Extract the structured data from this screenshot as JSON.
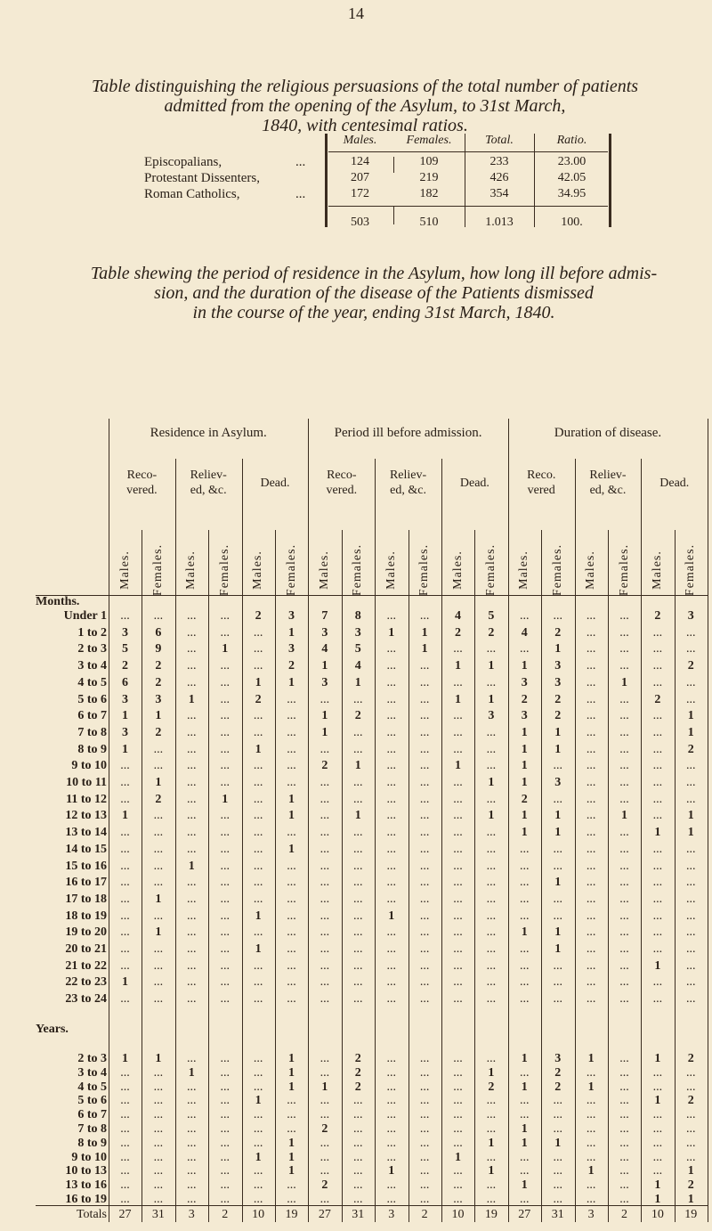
{
  "page_number": "14",
  "religion_table": {
    "title": [
      "Table distinguishing the religious persuasions of the total number of patients",
      "admitted from the opening of the Asylum, to 31st March,",
      "1840, with centesimal ratios."
    ],
    "headers": [
      "Males.",
      "Females.",
      "Total.",
      "Ratio."
    ],
    "rows": [
      {
        "label": "Episcopalians,",
        "dots": "...",
        "values": [
          "124",
          "109",
          "233",
          "23.00"
        ]
      },
      {
        "label": "Protestant Dissenters,",
        "dots": "",
        "values": [
          "207",
          "219",
          "426",
          "42.05"
        ]
      },
      {
        "label": "Roman Catholics,",
        "dots": "...",
        "values": [
          "172",
          "182",
          "354",
          "34.95"
        ]
      }
    ],
    "totals": [
      "503",
      "510",
      "1.013",
      "100."
    ]
  },
  "residence_table": {
    "title": [
      "Table shewing the period of residence in the Asylum, how long ill before admis-",
      "sion, and the duration of the disease of the Patients dismissed",
      "in the course of the year, ending 31st March, 1840."
    ],
    "groups": [
      "Residence in Asylum.",
      "Period ill before admission.",
      "Duration of disease."
    ],
    "subgroups": [
      [
        "Reco-",
        "vered."
      ],
      [
        "Reliev-",
        "ed, &c."
      ],
      [
        "Dead."
      ],
      [
        "Reco-",
        "vered."
      ],
      [
        "Reliev-",
        "ed, &c."
      ],
      [
        "Dead."
      ],
      [
        "Reco.",
        "vered"
      ],
      [
        "Reliev-",
        "ed, &c."
      ],
      [
        "Dead."
      ]
    ],
    "sex_labels": [
      "Males.",
      "Females."
    ],
    "months_label": "Months.",
    "years_label": "Years.",
    "month_rows": [
      {
        "label": "Under 1",
        "v": [
          "...",
          "...",
          "...",
          "...",
          "2",
          "3",
          "7",
          "8",
          "...",
          "...",
          "4",
          "5",
          "...",
          "...",
          "...",
          "...",
          "2",
          "3"
        ]
      },
      {
        "label": "1 to 2",
        "v": [
          "3",
          "6",
          "...",
          "...",
          "...",
          "1",
          "3",
          "3",
          "1",
          "1",
          "2",
          "2",
          "4",
          "2",
          "...",
          "...",
          "...",
          "..."
        ]
      },
      {
        "label": "2 to 3",
        "v": [
          "5",
          "9",
          "...",
          "1",
          "...",
          "3",
          "4",
          "5",
          "...",
          "1",
          "...",
          "...",
          "...",
          "1",
          "...",
          "...",
          "...",
          "..."
        ]
      },
      {
        "label": "3 to 4",
        "v": [
          "2",
          "2",
          "...",
          "...",
          "...",
          "2",
          "1",
          "4",
          "...",
          "...",
          "1",
          "1",
          "1",
          "3",
          "...",
          "...",
          "...",
          "2"
        ]
      },
      {
        "label": "4 to 5",
        "v": [
          "6",
          "2",
          "...",
          "...",
          "1",
          "1",
          "3",
          "1",
          "...",
          "...",
          "...",
          "...",
          "3",
          "3",
          "...",
          "1",
          "...",
          "..."
        ]
      },
      {
        "label": "5 to 6",
        "v": [
          "3",
          "3",
          "1",
          "...",
          "2",
          "...",
          "...",
          "...",
          "...",
          "...",
          "1",
          "1",
          "2",
          "2",
          "...",
          "...",
          "2",
          "..."
        ]
      },
      {
        "label": "6 to 7",
        "v": [
          "1",
          "1",
          "...",
          "...",
          "...",
          "...",
          "1",
          "2",
          "...",
          "...",
          "...",
          "3",
          "3",
          "2",
          "...",
          "...",
          "...",
          "1"
        ]
      },
      {
        "label": "7 to 8",
        "v": [
          "3",
          "2",
          "...",
          "...",
          "...",
          "...",
          "1",
          "...",
          "...",
          "...",
          "...",
          "...",
          "1",
          "1",
          "...",
          "...",
          "...",
          "1"
        ]
      },
      {
        "label": "8 to 9",
        "v": [
          "1",
          "...",
          "...",
          "...",
          "1",
          "...",
          "...",
          "...",
          "...",
          "...",
          "...",
          "...",
          "1",
          "1",
          "...",
          "...",
          "...",
          "2"
        ]
      },
      {
        "label": "9 to 10",
        "v": [
          "...",
          "...",
          "...",
          "...",
          "...",
          "...",
          "2",
          "1",
          "...",
          "...",
          "1",
          "...",
          "1",
          "...",
          "...",
          "...",
          "...",
          "..."
        ]
      },
      {
        "label": "10 to 11",
        "v": [
          "...",
          "1",
          "...",
          "...",
          "...",
          "...",
          "...",
          "...",
          "...",
          "...",
          "...",
          "1",
          "1",
          "3",
          "...",
          "...",
          "...",
          "..."
        ]
      },
      {
        "label": "11 to 12",
        "v": [
          "...",
          "2",
          "...",
          "1",
          "...",
          "1",
          "...",
          "...",
          "...",
          "...",
          "...",
          "...",
          "2",
          "...",
          "...",
          "...",
          "...",
          "..."
        ]
      },
      {
        "label": "12 to 13",
        "v": [
          "1",
          "...",
          "...",
          "...",
          "...",
          "1",
          "...",
          "1",
          "...",
          "...",
          "...",
          "1",
          "1",
          "1",
          "...",
          "1",
          "...",
          "1"
        ]
      },
      {
        "label": "13 to 14",
        "v": [
          "...",
          "...",
          "...",
          "...",
          "...",
          "...",
          "...",
          "...",
          "...",
          "...",
          "...",
          "...",
          "1",
          "1",
          "...",
          "...",
          "1",
          "1"
        ]
      },
      {
        "label": "14 to 15",
        "v": [
          "...",
          "...",
          "...",
          "...",
          "...",
          "1",
          "...",
          "...",
          "...",
          "...",
          "...",
          "...",
          "...",
          "...",
          "...",
          "...",
          "...",
          "..."
        ]
      },
      {
        "label": "15 to 16",
        "v": [
          "...",
          "...",
          "1",
          "...",
          "...",
          "...",
          "...",
          "...",
          "...",
          "...",
          "...",
          "...",
          "...",
          "...",
          "...",
          "...",
          "...",
          "..."
        ]
      },
      {
        "label": "16 to 17",
        "v": [
          "...",
          "...",
          "...",
          "...",
          "...",
          "...",
          "...",
          "...",
          "...",
          "...",
          "...",
          "...",
          "...",
          "1",
          "...",
          "...",
          "...",
          "..."
        ]
      },
      {
        "label": "17 to 18",
        "v": [
          "...",
          "1",
          "...",
          "...",
          "...",
          "...",
          "...",
          "...",
          "...",
          "...",
          "...",
          "...",
          "...",
          "...",
          "...",
          "...",
          "...",
          "..."
        ]
      },
      {
        "label": "18 to 19",
        "v": [
          "...",
          "...",
          "...",
          "...",
          "1",
          "...",
          "...",
          "...",
          "1",
          "...",
          "...",
          "...",
          "...",
          "...",
          "...",
          "...",
          "...",
          "..."
        ]
      },
      {
        "label": "19 to 20",
        "v": [
          "...",
          "1",
          "...",
          "...",
          "...",
          "...",
          "...",
          "...",
          "...",
          "...",
          "...",
          "...",
          "1",
          "1",
          "...",
          "...",
          "...",
          "..."
        ]
      },
      {
        "label": "20 to 21",
        "v": [
          "...",
          "...",
          "...",
          "...",
          "1",
          "...",
          "...",
          "...",
          "...",
          "...",
          "...",
          "...",
          "...",
          "1",
          "...",
          "...",
          "...",
          "..."
        ]
      },
      {
        "label": "21 to 22",
        "v": [
          "...",
          "...",
          "...",
          "...",
          "...",
          "...",
          "...",
          "...",
          "...",
          "...",
          "...",
          "...",
          "...",
          "...",
          "...",
          "...",
          "1",
          "..."
        ]
      },
      {
        "label": "22 to 23",
        "v": [
          "1",
          "...",
          "...",
          "...",
          "...",
          "...",
          "...",
          "...",
          "...",
          "...",
          "...",
          "...",
          "...",
          "...",
          "...",
          "...",
          "...",
          "..."
        ]
      },
      {
        "label": "23 to 24",
        "v": [
          "...",
          "...",
          "...",
          "...",
          "...",
          "...",
          "...",
          "...",
          "...",
          "...",
          "...",
          "...",
          "...",
          "...",
          "...",
          "...",
          "...",
          "..."
        ]
      }
    ],
    "year_rows": [
      {
        "label": "2 to 3",
        "v": [
          "1",
          "1",
          "...",
          "...",
          "...",
          "1",
          "...",
          "2",
          "...",
          "...",
          "...",
          "...",
          "1",
          "3",
          "1",
          "...",
          "1",
          "2"
        ]
      },
      {
        "label": "3 to 4",
        "v": [
          "...",
          "...",
          "1",
          "...",
          "...",
          "1",
          "...",
          "2",
          "...",
          "...",
          "...",
          "1",
          "...",
          "2",
          "...",
          "...",
          "...",
          "..."
        ]
      },
      {
        "label": "4 to 5",
        "v": [
          "...",
          "...",
          "...",
          "...",
          "...",
          "1",
          "1",
          "2",
          "...",
          "...",
          "...",
          "2",
          "1",
          "2",
          "1",
          "...",
          "...",
          "..."
        ]
      },
      {
        "label": "5 to 6",
        "v": [
          "...",
          "...",
          "...",
          "...",
          "1",
          "...",
          "...",
          "...",
          "...",
          "...",
          "...",
          "...",
          "...",
          "...",
          "...",
          "...",
          "1",
          "2"
        ]
      },
      {
        "label": "6 to 7",
        "v": [
          "...",
          "...",
          "...",
          "...",
          "...",
          "...",
          "...",
          "...",
          "...",
          "...",
          "...",
          "...",
          "...",
          "...",
          "...",
          "...",
          "...",
          "..."
        ]
      },
      {
        "label": "7 to 8",
        "v": [
          "...",
          "...",
          "...",
          "...",
          "...",
          "...",
          "2",
          "...",
          "...",
          "...",
          "...",
          "...",
          "1",
          "...",
          "...",
          "...",
          "...",
          "..."
        ]
      },
      {
        "label": "8 to 9",
        "v": [
          "...",
          "...",
          "...",
          "...",
          "...",
          "1",
          "...",
          "...",
          "...",
          "...",
          "...",
          "1",
          "1",
          "1",
          "...",
          "...",
          "...",
          "..."
        ]
      },
      {
        "label": "9 to 10",
        "v": [
          "...",
          "...",
          "...",
          "...",
          "1",
          "1",
          "...",
          "...",
          "...",
          "...",
          "1",
          "...",
          "...",
          "...",
          "...",
          "...",
          "...",
          "..."
        ]
      },
      {
        "label": "10 to 13",
        "v": [
          "...",
          "...",
          "...",
          "...",
          "...",
          "1",
          "...",
          "...",
          "1",
          "...",
          "...",
          "1",
          "...",
          "...",
          "1",
          "...",
          "...",
          "1"
        ]
      },
      {
        "label": "13 to 16",
        "v": [
          "...",
          "...",
          "...",
          "...",
          "...",
          "...",
          "2",
          "...",
          "...",
          "...",
          "...",
          "...",
          "1",
          "...",
          "...",
          "...",
          "1",
          "2"
        ]
      },
      {
        "label": "16 to 19",
        "v": [
          "...",
          "...",
          "...",
          "...",
          "...",
          "...",
          "...",
          "...",
          "...",
          "...",
          "...",
          "...",
          "...",
          "...",
          "...",
          "...",
          "1",
          "1"
        ]
      }
    ],
    "totals_label": "Totals",
    "totals": [
      "27",
      "31",
      "3",
      "2",
      "10",
      "19",
      "27",
      "31",
      "3",
      "2",
      "10",
      "19",
      "27",
      "31",
      "3",
      "2",
      "10",
      "19"
    ]
  }
}
